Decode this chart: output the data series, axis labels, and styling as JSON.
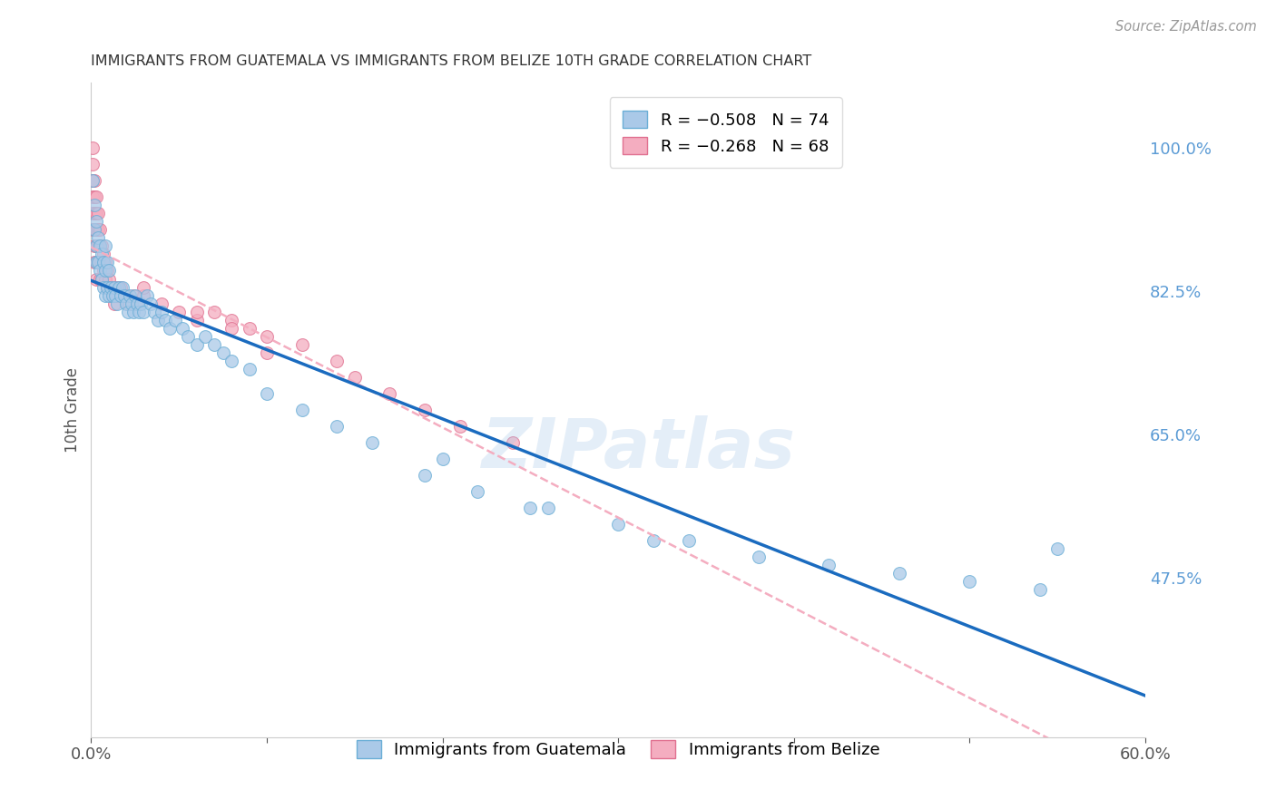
{
  "title": "IMMIGRANTS FROM GUATEMALA VS IMMIGRANTS FROM BELIZE 10TH GRADE CORRELATION CHART",
  "source": "Source: ZipAtlas.com",
  "ylabel": "10th Grade",
  "xlim": [
    0.0,
    0.6
  ],
  "ylim": [
    0.28,
    1.08
  ],
  "yticks": [
    0.475,
    0.65,
    0.825,
    1.0
  ],
  "ytick_labels": [
    "47.5%",
    "65.0%",
    "82.5%",
    "100.0%"
  ],
  "xticks": [
    0.0,
    0.1,
    0.2,
    0.3,
    0.4,
    0.5,
    0.6
  ],
  "xtick_labels": [
    "0.0%",
    "",
    "",
    "",
    "",
    "",
    "60.0%"
  ],
  "series_guatemala": {
    "color": "#aac9e8",
    "edge_color": "#6aaed6",
    "line_color": "#1a6bbf",
    "x": [
      0.001,
      0.002,
      0.002,
      0.003,
      0.003,
      0.003,
      0.004,
      0.004,
      0.005,
      0.005,
      0.006,
      0.006,
      0.007,
      0.007,
      0.008,
      0.008,
      0.008,
      0.009,
      0.009,
      0.01,
      0.01,
      0.011,
      0.012,
      0.013,
      0.014,
      0.015,
      0.016,
      0.017,
      0.018,
      0.019,
      0.02,
      0.021,
      0.022,
      0.023,
      0.024,
      0.025,
      0.026,
      0.027,
      0.028,
      0.03,
      0.032,
      0.034,
      0.036,
      0.038,
      0.04,
      0.042,
      0.045,
      0.048,
      0.052,
      0.055,
      0.06,
      0.065,
      0.07,
      0.075,
      0.08,
      0.09,
      0.1,
      0.12,
      0.14,
      0.16,
      0.19,
      0.22,
      0.25,
      0.3,
      0.34,
      0.38,
      0.42,
      0.46,
      0.5,
      0.54,
      0.2,
      0.26,
      0.32,
      0.55
    ],
    "y": [
      0.96,
      0.93,
      0.9,
      0.91,
      0.88,
      0.86,
      0.89,
      0.86,
      0.88,
      0.85,
      0.87,
      0.84,
      0.86,
      0.83,
      0.88,
      0.85,
      0.82,
      0.86,
      0.83,
      0.85,
      0.82,
      0.83,
      0.82,
      0.83,
      0.82,
      0.81,
      0.83,
      0.82,
      0.83,
      0.82,
      0.81,
      0.8,
      0.82,
      0.81,
      0.8,
      0.82,
      0.81,
      0.8,
      0.81,
      0.8,
      0.82,
      0.81,
      0.8,
      0.79,
      0.8,
      0.79,
      0.78,
      0.79,
      0.78,
      0.77,
      0.76,
      0.77,
      0.76,
      0.75,
      0.74,
      0.73,
      0.7,
      0.68,
      0.66,
      0.64,
      0.6,
      0.58,
      0.56,
      0.54,
      0.52,
      0.5,
      0.49,
      0.48,
      0.47,
      0.46,
      0.62,
      0.56,
      0.52,
      0.51
    ]
  },
  "series_belize": {
    "color": "#f4adc0",
    "edge_color": "#e07090",
    "line_color": "#f4adc0",
    "x": [
      0.001,
      0.001,
      0.001,
      0.001,
      0.001,
      0.001,
      0.002,
      0.002,
      0.002,
      0.002,
      0.002,
      0.002,
      0.003,
      0.003,
      0.003,
      0.003,
      0.003,
      0.003,
      0.004,
      0.004,
      0.004,
      0.004,
      0.005,
      0.005,
      0.005,
      0.005,
      0.006,
      0.006,
      0.006,
      0.007,
      0.007,
      0.008,
      0.008,
      0.009,
      0.009,
      0.01,
      0.011,
      0.012,
      0.013,
      0.015,
      0.017,
      0.019,
      0.021,
      0.024,
      0.026,
      0.03,
      0.04,
      0.05,
      0.06,
      0.07,
      0.08,
      0.09,
      0.1,
      0.12,
      0.14,
      0.15,
      0.17,
      0.19,
      0.21,
      0.24,
      0.1,
      0.08,
      0.06,
      0.03,
      0.02,
      0.015,
      0.012,
      0.009
    ],
    "y": [
      1.0,
      0.98,
      0.96,
      0.94,
      0.92,
      0.9,
      0.96,
      0.94,
      0.92,
      0.9,
      0.88,
      0.86,
      0.94,
      0.92,
      0.9,
      0.88,
      0.86,
      0.84,
      0.92,
      0.9,
      0.88,
      0.86,
      0.9,
      0.88,
      0.86,
      0.84,
      0.88,
      0.86,
      0.84,
      0.87,
      0.85,
      0.86,
      0.84,
      0.85,
      0.83,
      0.84,
      0.83,
      0.82,
      0.81,
      0.82,
      0.83,
      0.82,
      0.81,
      0.82,
      0.81,
      0.82,
      0.81,
      0.8,
      0.79,
      0.8,
      0.79,
      0.78,
      0.77,
      0.76,
      0.74,
      0.72,
      0.7,
      0.68,
      0.66,
      0.64,
      0.75,
      0.78,
      0.8,
      0.83,
      0.82,
      0.83,
      0.82,
      0.83
    ]
  },
  "watermark": "ZIPatlas",
  "background_color": "#ffffff",
  "grid_color": "#cccccc",
  "right_label_color": "#5b9bd5",
  "title_color": "#333333"
}
